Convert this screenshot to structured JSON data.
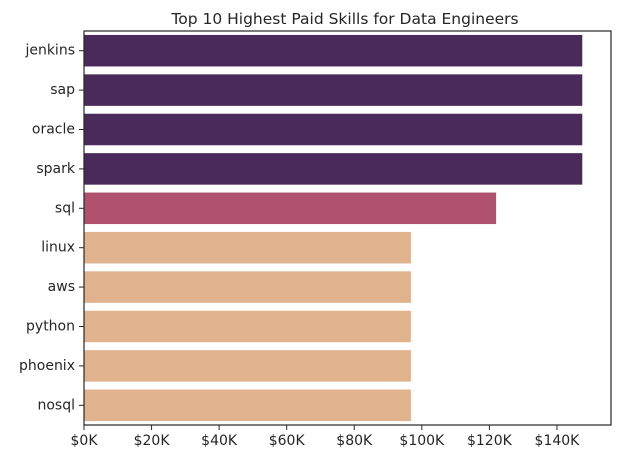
{
  "chart_data": {
    "type": "bar",
    "orientation": "horizontal",
    "title": "Top 10 Highest Paid Skills for Data Engineers",
    "xlabel": "",
    "ylabel": "",
    "categories": [
      "jenkins",
      "sap",
      "oracle",
      "spark",
      "sql",
      "linux",
      "aws",
      "python",
      "phoenix",
      "nosql"
    ],
    "values": [
      147500,
      147500,
      147500,
      147500,
      122000,
      96773,
      96773,
      96773,
      96773,
      96773
    ],
    "bar_colors": [
      "#4a2a5a",
      "#4a2a5a",
      "#4a2a5a",
      "#4a2a5a",
      "#b0526e",
      "#e0b28e",
      "#e0b28e",
      "#e0b28e",
      "#e0b28e",
      "#e0b28e"
    ],
    "xlim": [
      0,
      156000
    ],
    "x_ticks": [
      0,
      20000,
      40000,
      60000,
      80000,
      100000,
      120000,
      140000
    ],
    "x_tick_labels": [
      "$0K",
      "$20K",
      "$40K",
      "$60K",
      "$80K",
      "$100K",
      "$120K",
      "$140K"
    ],
    "grid": false,
    "legend": "none"
  }
}
